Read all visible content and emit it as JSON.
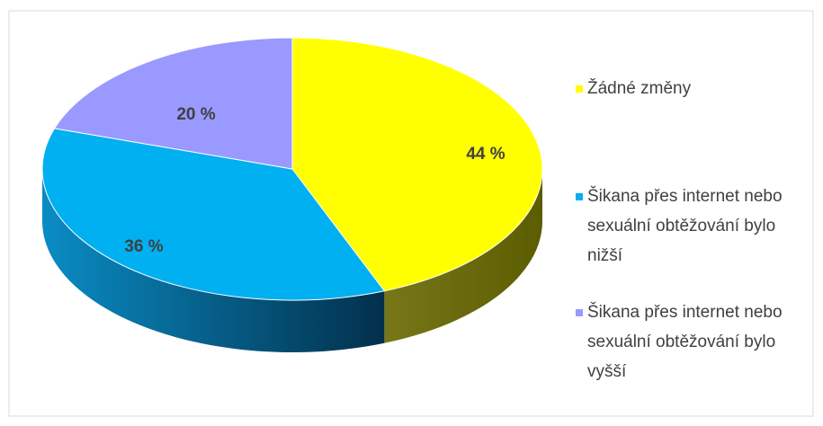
{
  "chart_data": {
    "type": "pie",
    "categories": [
      "Žádné změny",
      "Šikana přes internet nebo sexuální obtěžování bylo nižší",
      "Šikana přes internet nebo sexuální obtěžování bylo vyšší"
    ],
    "values": [
      44,
      36,
      20
    ],
    "value_labels": [
      "44 %",
      "36 %",
      "20 %"
    ],
    "colors": [
      "#ffff00",
      "#00b0f0",
      "#9999ff"
    ]
  }
}
